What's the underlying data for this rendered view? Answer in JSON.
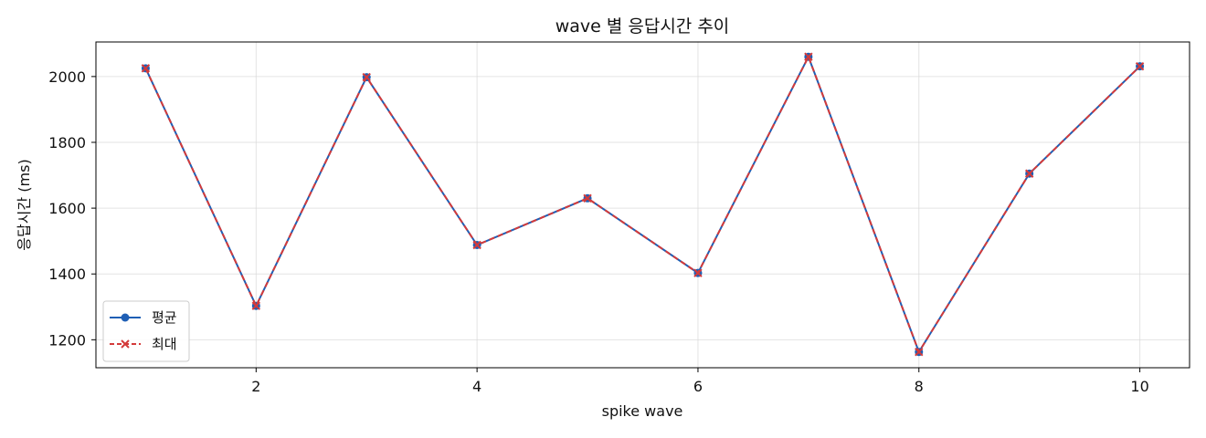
{
  "chart_data": {
    "type": "line",
    "title": "wave 별 응답시간 추이",
    "xlabel": "spike wave",
    "ylabel": "응답시간 (ms)",
    "x": [
      1,
      2,
      3,
      4,
      5,
      6,
      7,
      8,
      9,
      10
    ],
    "xlim": [
      0.55,
      10.45
    ],
    "ylim": [
      1115,
      2105
    ],
    "xticks": [
      2,
      4,
      6,
      8,
      10
    ],
    "yticks": [
      1200,
      1400,
      1600,
      1800,
      2000
    ],
    "grid": true,
    "legend_position": "lower-left",
    "series": [
      {
        "name": "평균",
        "values": [
          2025,
          1303,
          1998,
          1488,
          1630,
          1403,
          2060,
          1163,
          1705,
          2031
        ],
        "color": "#1f5fb5",
        "marker": "circle",
        "line_style": "solid"
      },
      {
        "name": "최대",
        "values": [
          2025,
          1303,
          1998,
          1488,
          1630,
          1403,
          2060,
          1163,
          1705,
          2031
        ],
        "color": "#d43a3a",
        "marker": "x",
        "line_style": "dashed"
      }
    ]
  }
}
